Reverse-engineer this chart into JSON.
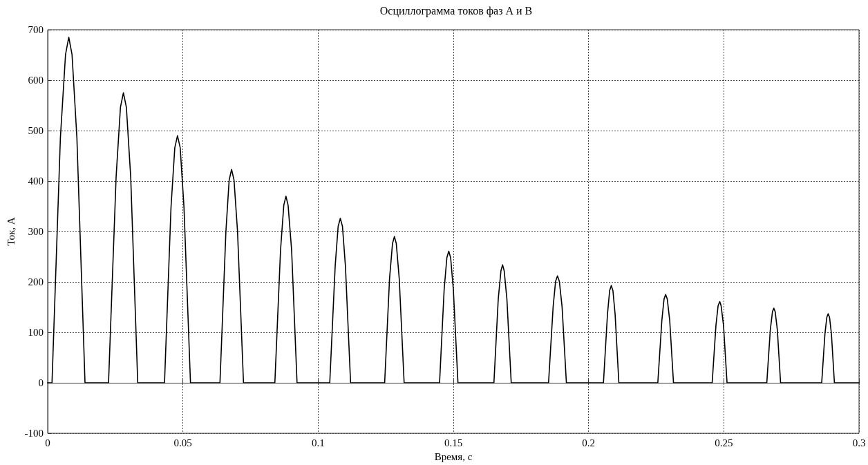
{
  "chart_data": {
    "type": "line",
    "title": "Осциллограмма токов фаз А и В",
    "xlabel": "Время, с",
    "ylabel": "Ток, А",
    "xlim": [
      0,
      0.3
    ],
    "xticks": [
      0,
      0.05,
      0.1,
      0.15,
      0.2,
      0.25,
      0.3
    ],
    "ylim": [
      -100,
      700
    ],
    "yticks": [
      -100,
      0,
      100,
      200,
      300,
      400,
      500,
      600,
      700
    ],
    "grid": true,
    "marker": "none",
    "line_style": "solid",
    "series": [
      {
        "color": "#000000",
        "x": [
          0,
          0.0016,
          0.0047,
          0.0066,
          0.0078,
          0.009,
          0.0108,
          0.0138,
          0.0225,
          0.0253,
          0.0269,
          0.028,
          0.0291,
          0.0307,
          0.0333,
          0.0432,
          0.0456,
          0.047,
          0.048,
          0.049,
          0.0504,
          0.0528,
          0.0637,
          0.0659,
          0.0671,
          0.068,
          0.0689,
          0.0702,
          0.0724,
          0.084,
          0.0861,
          0.0873,
          0.0881,
          0.0889,
          0.0902,
          0.0922,
          0.1043,
          0.1063,
          0.1074,
          0.1082,
          0.109,
          0.1101,
          0.112,
          0.1246,
          0.1264,
          0.1275,
          0.1282,
          0.1289,
          0.13,
          0.1318,
          0.1449,
          0.1466,
          0.1476,
          0.1483,
          0.149,
          0.15,
          0.1517,
          0.165,
          0.1666,
          0.1676,
          0.1682,
          0.1688,
          0.1698,
          0.1714,
          0.1852,
          0.1869,
          0.1878,
          0.1885,
          0.1892,
          0.1902,
          0.1918,
          0.2055,
          0.207,
          0.2078,
          0.2084,
          0.209,
          0.2098,
          0.2112,
          0.2256,
          0.2271,
          0.2279,
          0.2285,
          0.2291,
          0.23,
          0.2314,
          0.2457,
          0.2471,
          0.2479,
          0.2485,
          0.249,
          0.2499,
          0.2512,
          0.2659,
          0.2672,
          0.268,
          0.2685,
          0.269,
          0.2698,
          0.271,
          0.2862,
          0.2874,
          0.2881,
          0.2886,
          0.2891,
          0.2898,
          0.2909,
          0.3
        ],
        "values": [
          0,
          0,
          486,
          651,
          685,
          651,
          486,
          0,
          0,
          408,
          546,
          575,
          546,
          408,
          0,
          0,
          348,
          466,
          490,
          466,
          348,
          0,
          0,
          300,
          402,
          423,
          402,
          300,
          0,
          0,
          263,
          352,
          370,
          352,
          263,
          0,
          0,
          231,
          310,
          326,
          310,
          231,
          0,
          0,
          206,
          276,
          290,
          276,
          206,
          0,
          0,
          185,
          248,
          261,
          248,
          185,
          0,
          0,
          166,
          222,
          234,
          222,
          166,
          0,
          0,
          151,
          201,
          212,
          201,
          151,
          0,
          0,
          137,
          183,
          193,
          183,
          137,
          0,
          0,
          124,
          166,
          175,
          166,
          124,
          0,
          0,
          114,
          153,
          161,
          153,
          114,
          0,
          0,
          105,
          141,
          148,
          141,
          105,
          0,
          0,
          97,
          130,
          137,
          130,
          97,
          0,
          0
        ]
      }
    ]
  }
}
